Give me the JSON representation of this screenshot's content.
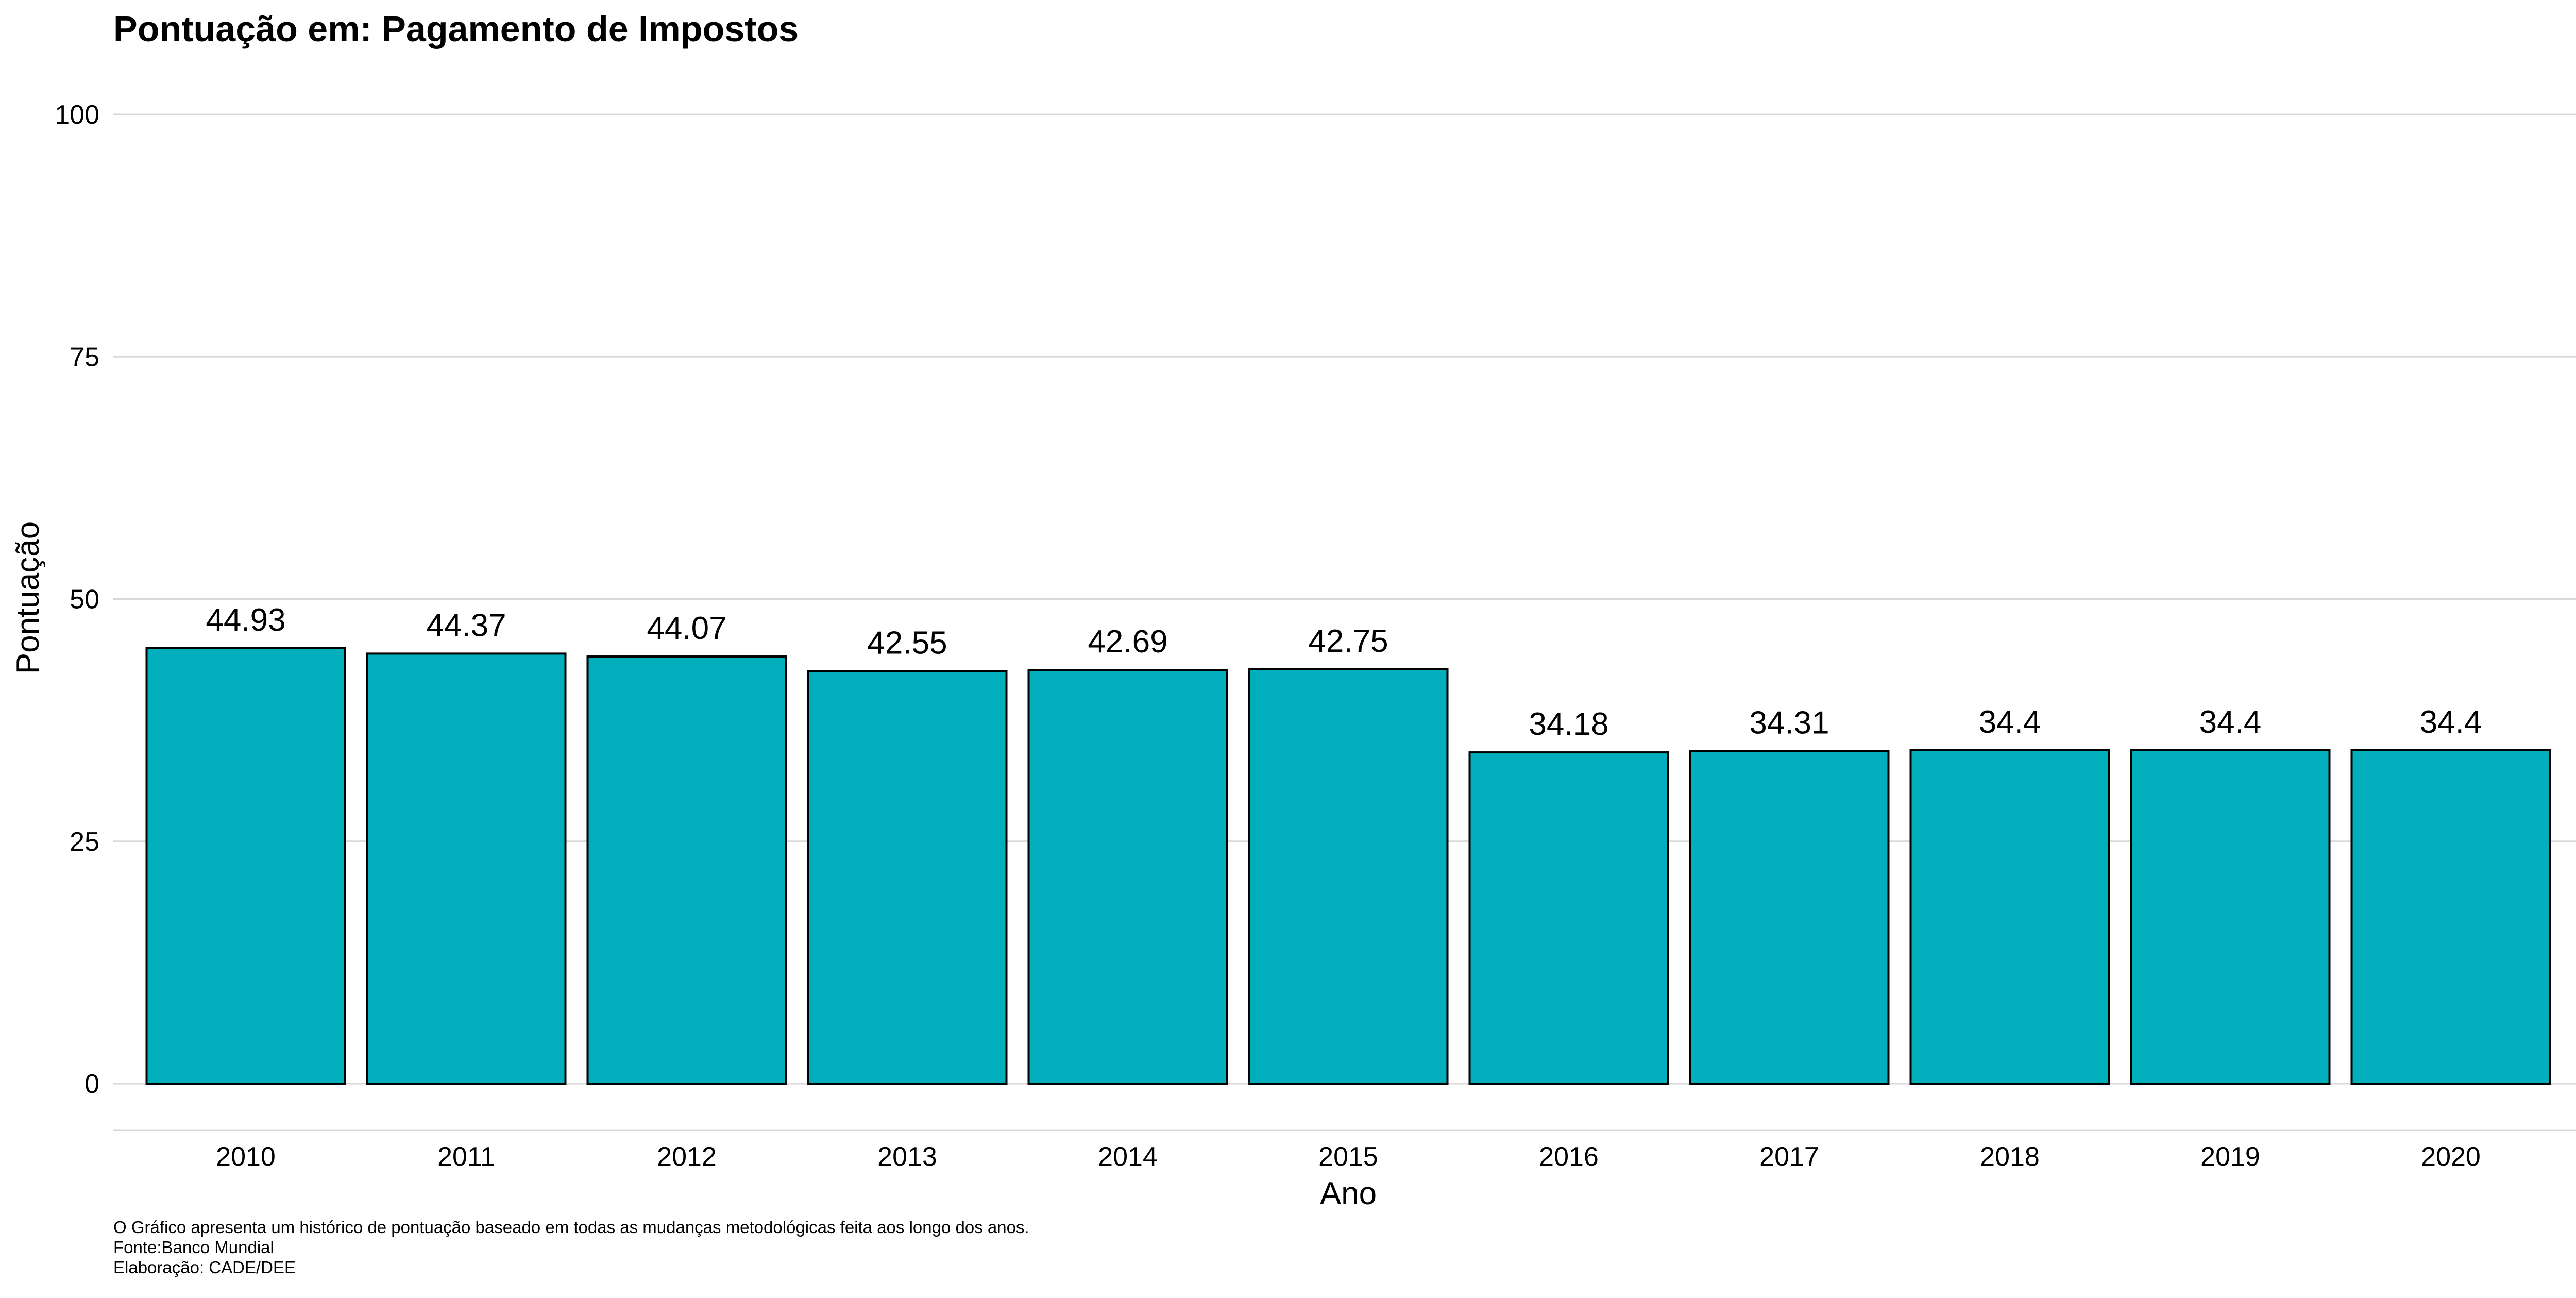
{
  "chart_data": {
    "type": "bar",
    "title": "Pontuação em: Pagamento de Impostos",
    "xlabel": "Ano",
    "ylabel": "Pontuação",
    "categories": [
      "2010",
      "2011",
      "2012",
      "2013",
      "2014",
      "2015",
      "2016",
      "2017",
      "2018",
      "2019",
      "2020"
    ],
    "values": [
      44.93,
      44.37,
      44.07,
      42.55,
      42.69,
      42.75,
      34.18,
      34.31,
      34.4,
      34.4,
      34.4
    ],
    "value_labels": [
      "44.93",
      "44.37",
      "44.07",
      "42.55",
      "42.69",
      "42.75",
      "34.18",
      "34.31",
      "34.4",
      "34.4",
      "34.4"
    ],
    "ylim": [
      0,
      100
    ],
    "yticks": [
      0,
      25,
      50,
      75,
      100
    ],
    "grid": true,
    "legend": "none",
    "bar_color": "#00AEBC",
    "bar_outline_color": "#000000",
    "gridline_color": "#D9D9D9",
    "caption": [
      "O Gráfico apresenta um histórico de pontuação baseado em todas as mudanças metodológicas feita aos longo dos anos.",
      "Fonte:Banco Mundial",
      "Elaboração: CADE/DEE"
    ]
  }
}
